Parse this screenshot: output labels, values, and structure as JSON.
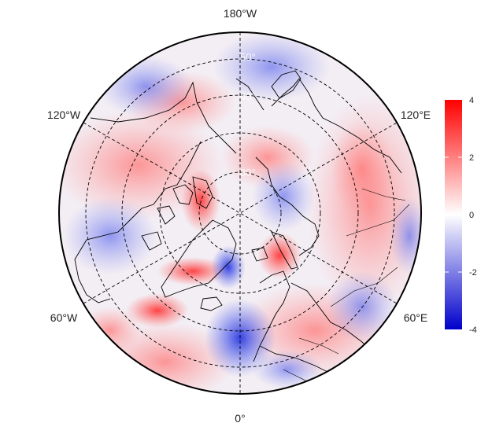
{
  "map": {
    "projection": "north-polar-stereographic",
    "lon_labels": [
      {
        "text": "180°W"
      },
      {
        "text": "120°W"
      },
      {
        "text": "120°E"
      },
      {
        "text": "60°W"
      },
      {
        "text": "60°E"
      },
      {
        "text": "0°"
      }
    ],
    "lat_labels": [
      "50°",
      "60°",
      "80°"
    ],
    "graticule": "dashed",
    "colors": {
      "positive": "#ff0000",
      "neutral": "#ffffff",
      "negative": "#0000cc"
    }
  },
  "colorbar": {
    "ticks": [
      "4",
      "2",
      "0",
      "-2",
      "-4"
    ],
    "range": [
      -4,
      4
    ]
  }
}
